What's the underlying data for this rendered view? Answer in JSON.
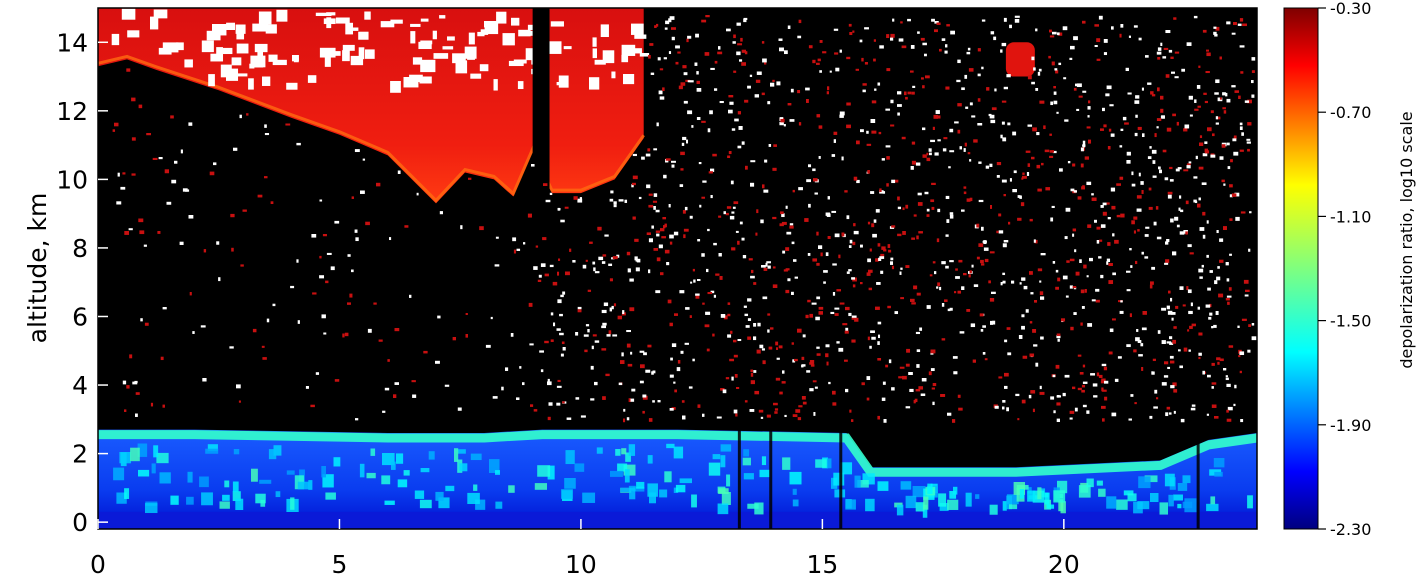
{
  "chart_data": {
    "type": "heatmap",
    "title": "",
    "xlabel": "",
    "ylabel": "altitude, km",
    "xlim": [
      0,
      24
    ],
    "ylim": [
      -0.2,
      15
    ],
    "x_ticks": [
      "0",
      "5",
      "10",
      "15",
      "20"
    ],
    "x_tick_values": [
      0,
      5,
      10,
      15,
      20
    ],
    "y_ticks": [
      "0",
      "2",
      "4",
      "6",
      "8",
      "10",
      "12",
      "14"
    ],
    "y_tick_values": [
      0,
      2,
      4,
      6,
      8,
      10,
      12,
      14
    ],
    "colorbar": {
      "label": "depolarization ratio, log10 scale",
      "range": [
        -2.3,
        -0.3
      ],
      "ticks": [
        "-0.30",
        "-0.70",
        "-1.10",
        "-1.50",
        "-1.90",
        "-2.30"
      ],
      "tick_values": [
        -0.3,
        -0.7,
        -1.1,
        -1.5,
        -1.9,
        -2.3
      ],
      "colormap": "jet"
    },
    "features": [
      {
        "name": "cirrus-cloud",
        "value": -0.55,
        "time_range": [
          0,
          11.3
        ],
        "top_km": 15,
        "base_km": [
          [
            0.0,
            13.3
          ],
          [
            0.6,
            13.5
          ],
          [
            1.2,
            13.2
          ],
          [
            2.5,
            12.6
          ],
          [
            4.0,
            11.8
          ],
          [
            5.0,
            11.3
          ],
          [
            6.0,
            10.7
          ],
          [
            7.0,
            9.3
          ],
          [
            7.6,
            10.2
          ],
          [
            8.2,
            10.0
          ],
          [
            8.6,
            9.5
          ],
          [
            9.0,
            10.8
          ],
          [
            9.4,
            9.6
          ],
          [
            10.0,
            9.6
          ],
          [
            10.7,
            10.0
          ],
          [
            11.3,
            11.2
          ]
        ]
      },
      {
        "name": "cirrus-cloud-patch",
        "value": -0.5,
        "time_range": [
          18.8,
          19.4
        ],
        "altitude_range": [
          13.0,
          14.0
        ]
      },
      {
        "name": "boundary-layer",
        "value": -1.9,
        "time_range": [
          0,
          24
        ],
        "top_km": [
          [
            0.0,
            2.7
          ],
          [
            2.0,
            2.7
          ],
          [
            6.0,
            2.6
          ],
          [
            8.0,
            2.6
          ],
          [
            9.2,
            2.7
          ],
          [
            12.0,
            2.7
          ],
          [
            15.5,
            2.6
          ],
          [
            16.0,
            1.6
          ],
          [
            19.0,
            1.6
          ],
          [
            22.0,
            1.8
          ],
          [
            23.0,
            2.4
          ],
          [
            24.0,
            2.6
          ]
        ]
      },
      {
        "name": "boundary-layer-top",
        "value": -1.45,
        "thickness_km": 0.35
      }
    ],
    "colors": {
      "no_data": "#ffffff",
      "clear_air": "#000000"
    }
  }
}
